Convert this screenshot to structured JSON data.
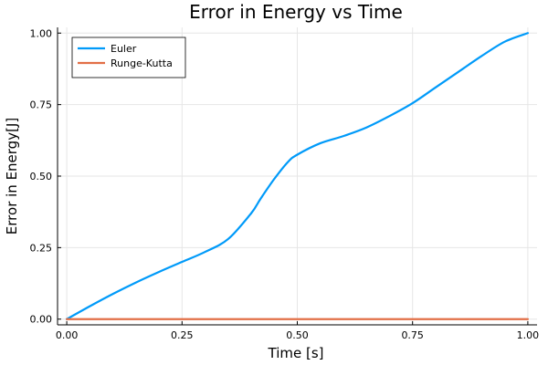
{
  "chart_data": {
    "type": "line",
    "title": "Error in Energy vs Time",
    "xlabel": "Time [s]",
    "ylabel": "Error in Energy[J]",
    "xlim": [
      -0.02,
      1.02
    ],
    "ylim": [
      -0.02,
      1.02
    ],
    "xticks": [
      0.0,
      0.25,
      0.5,
      0.75,
      1.0
    ],
    "xtick_labels": [
      "0.00",
      "0.25",
      "0.50",
      "0.75",
      "1.00"
    ],
    "yticks": [
      0.0,
      0.25,
      0.5,
      0.75,
      1.0
    ],
    "ytick_labels": [
      "0.00",
      "0.25",
      "0.50",
      "0.75",
      "1.00"
    ],
    "grid": true,
    "legend_position": "top-left",
    "series": [
      {
        "name": "Euler",
        "color": "#009af9",
        "x": [
          0.0,
          0.05,
          0.1,
          0.15,
          0.2,
          0.25,
          0.3,
          0.35,
          0.4,
          0.42,
          0.45,
          0.48,
          0.5,
          0.55,
          0.6,
          0.65,
          0.7,
          0.75,
          0.8,
          0.85,
          0.9,
          0.95,
          1.0
        ],
        "y": [
          0.0,
          0.045,
          0.088,
          0.128,
          0.165,
          0.2,
          0.235,
          0.28,
          0.37,
          0.42,
          0.49,
          0.55,
          0.575,
          0.615,
          0.64,
          0.67,
          0.71,
          0.755,
          0.81,
          0.865,
          0.92,
          0.97,
          1.0
        ]
      },
      {
        "name": "Runge-Kutta",
        "color": "#e26f46",
        "x": [
          0.0,
          0.25,
          0.5,
          0.75,
          1.0
        ],
        "y": [
          0.0,
          0.0,
          0.0,
          0.0,
          0.0
        ]
      }
    ]
  }
}
